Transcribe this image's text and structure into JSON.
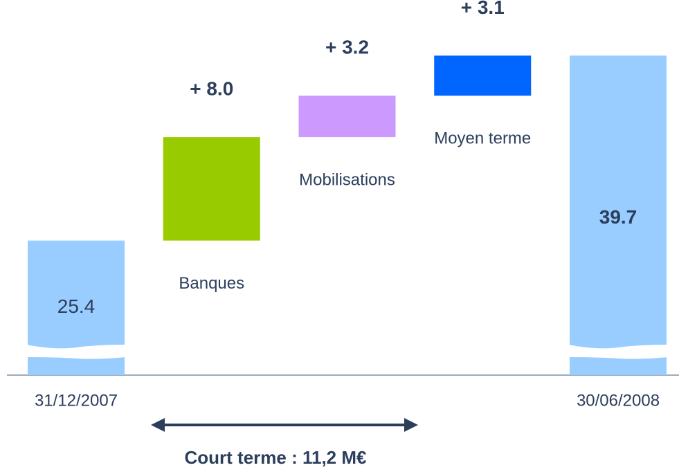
{
  "chart_data": {
    "type": "waterfall",
    "categories": [
      "31/12/2007",
      "Banques",
      "Mobilisations",
      "Moyen terme",
      "30/06/2008"
    ],
    "values": [
      25.4,
      8.0,
      3.2,
      3.1,
      39.7
    ],
    "value_labels": [
      "25.4",
      "+ 8.0",
      "+ 3.2",
      "+ 3.1",
      "39.7"
    ],
    "totals": [
      true,
      false,
      false,
      false,
      true
    ],
    "colors": [
      "#99ccff",
      "#99cc00",
      "#cc99ff",
      "#0066ff",
      "#99ccff"
    ],
    "ylim": [
      15,
      44
    ],
    "annotation": "Court terme : 11,2 M€"
  }
}
